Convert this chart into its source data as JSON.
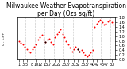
{
  "title": "Milwaukee Weather Evapotranspiration\nper Day (Ozs sq/ft)",
  "ylabel_right": true,
  "background_color": "#ffffff",
  "grid_color": "#cccccc",
  "dot_color_red": "#ff0000",
  "dot_color_black": "#000000",
  "xlim": [
    0,
    52
  ],
  "ylim": [
    0.0,
    1.8
  ],
  "yticks": [
    0.0,
    0.2,
    0.4,
    0.6,
    0.8,
    1.0,
    1.2,
    1.4,
    1.6,
    1.8
  ],
  "ytick_labels": [
    "0.0",
    "0.2",
    "0.4",
    "0.6",
    "0.8",
    "1.0",
    "1.2",
    "1.4",
    "1.6",
    "1.8"
  ],
  "vlines": [
    4.5,
    9.5,
    14.5,
    19.5,
    24.5,
    29.5,
    34.5,
    39.5,
    44.5,
    49.5
  ],
  "red_x": [
    1,
    2,
    3,
    4,
    5,
    6,
    7,
    8,
    9,
    10,
    11,
    12,
    13,
    14,
    15,
    16,
    17,
    18,
    19,
    20,
    21,
    22,
    23,
    24,
    25,
    26,
    27,
    28,
    29,
    30,
    31,
    32,
    33,
    34,
    35,
    36,
    37,
    38,
    39,
    40,
    41,
    42,
    43,
    44,
    45,
    46,
    47,
    48,
    49,
    50,
    51
  ],
  "red_y": [
    0.8,
    0.7,
    0.65,
    0.55,
    0.45,
    0.35,
    0.3,
    0.45,
    0.55,
    0.65,
    0.85,
    0.95,
    1.05,
    0.85,
    0.75,
    0.85,
    0.9,
    0.75,
    0.65,
    0.95,
    1.1,
    1.2,
    1.3,
    1.1,
    0.95,
    0.8,
    0.65,
    0.5,
    0.35,
    0.45,
    0.55,
    0.45,
    0.35,
    0.4,
    0.3,
    0.2,
    0.15,
    0.2,
    0.3,
    0.4,
    1.4,
    1.55,
    1.65,
    1.7,
    1.6,
    1.5,
    1.55,
    1.65,
    1.7,
    1.6,
    1.5
  ],
  "black_x": [
    15,
    16,
    32,
    33
  ],
  "black_y": [
    0.75,
    0.85,
    0.45,
    0.35
  ],
  "xtick_positions": [
    1,
    3,
    5,
    8,
    10,
    12,
    15,
    17,
    20,
    22,
    25,
    27,
    30,
    32,
    35,
    37,
    40,
    42,
    45,
    47,
    50
  ],
  "title_fontsize": 5.5,
  "tick_fontsize": 3.5
}
